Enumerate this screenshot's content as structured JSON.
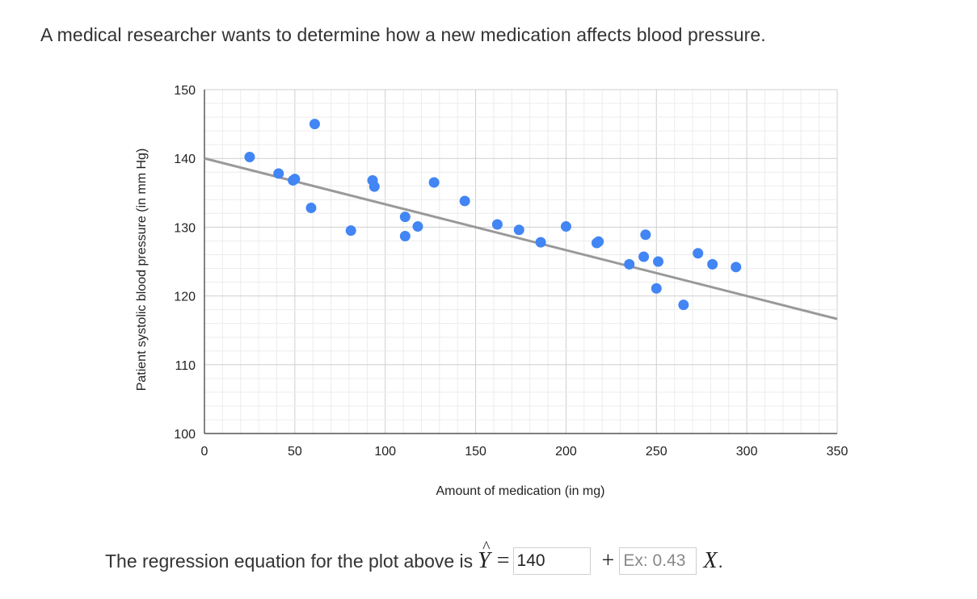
{
  "prompt": "A medical researcher wants to determine how a new medication affects blood pressure.",
  "chart_data": {
    "type": "scatter",
    "title": "",
    "xlabel": "Amount of medication (in mg)",
    "ylabel": "Patient systolic blood pressure (in mm Hg)",
    "xlim": [
      0,
      350
    ],
    "ylim": [
      100,
      150
    ],
    "x_ticks": [
      "0",
      "50",
      "100",
      "150",
      "200",
      "250",
      "300",
      "350"
    ],
    "y_ticks": [
      "100",
      "110",
      "120",
      "130",
      "140",
      "150"
    ],
    "grid": true,
    "point_color": "#4285f4",
    "line_color": "#999999",
    "points": [
      {
        "x": 25,
        "y": 140.2
      },
      {
        "x": 41,
        "y": 137.8
      },
      {
        "x": 49,
        "y": 136.8
      },
      {
        "x": 50,
        "y": 137.0
      },
      {
        "x": 59,
        "y": 132.8
      },
      {
        "x": 61,
        "y": 145.0
      },
      {
        "x": 81,
        "y": 129.5
      },
      {
        "x": 93,
        "y": 136.8
      },
      {
        "x": 94,
        "y": 135.9
      },
      {
        "x": 111,
        "y": 131.5
      },
      {
        "x": 111,
        "y": 128.7
      },
      {
        "x": 118,
        "y": 130.1
      },
      {
        "x": 127,
        "y": 136.5
      },
      {
        "x": 144,
        "y": 133.8
      },
      {
        "x": 162,
        "y": 130.4
      },
      {
        "x": 174,
        "y": 129.6
      },
      {
        "x": 186,
        "y": 127.8
      },
      {
        "x": 200,
        "y": 130.1
      },
      {
        "x": 217,
        "y": 127.7
      },
      {
        "x": 218,
        "y": 127.9
      },
      {
        "x": 235,
        "y": 124.6
      },
      {
        "x": 243,
        "y": 125.7
      },
      {
        "x": 244,
        "y": 128.9
      },
      {
        "x": 250,
        "y": 121.1
      },
      {
        "x": 251,
        "y": 125.0
      },
      {
        "x": 265,
        "y": 118.7
      },
      {
        "x": 273,
        "y": 126.2
      },
      {
        "x": 281,
        "y": 124.6
      },
      {
        "x": 294,
        "y": 124.2
      }
    ],
    "trendline": {
      "intercept": 140,
      "slope": -0.0667
    }
  },
  "equation": {
    "text": "The regression equation for the plot above is",
    "y_hat": "Y",
    "hat": "^",
    "equals": "=",
    "intercept_value": "140",
    "plus": "+",
    "slope_placeholder": "Ex: 0.43",
    "x_var": "X",
    "period": "."
  }
}
